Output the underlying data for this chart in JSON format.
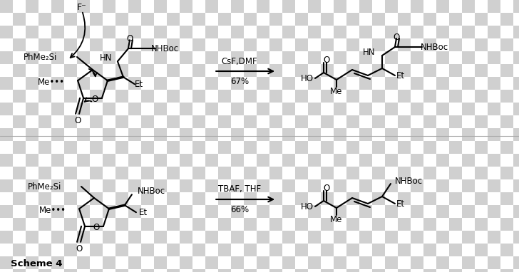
{
  "background_color": "#ffffff",
  "checker_light": "#d0d0d0",
  "checker_size": 18,
  "scheme_label": "Scheme 4",
  "r1_reagents": "CsF,DMF",
  "r1_yield": "67%",
  "r2_reagents": "TBAF, THF",
  "r2_yield": "66%",
  "fig_width": 7.28,
  "fig_height": 3.82,
  "dpi": 100
}
